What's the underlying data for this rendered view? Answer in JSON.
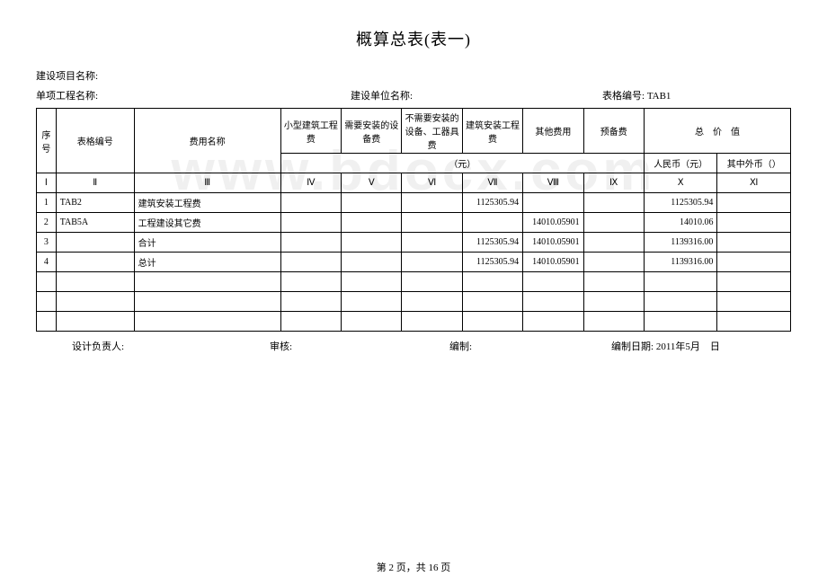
{
  "title": "概算总表(表一)",
  "meta": {
    "projectLabel": "建设项目名称:",
    "unitProjectLabel": "单项工程名称:",
    "constructorLabel": "建设单位名称:",
    "tableCodeLabel": "表格编号:",
    "tableCode": "TAB1"
  },
  "headers": {
    "seq": "序号",
    "code": "表格编号",
    "name": "费用名称",
    "smallBuild": "小型建筑工程费",
    "needInstall": "需要安装的设备费",
    "noInstall": "不需要安装的设备、工器具费",
    "buildInstall": "建筑安装工程费",
    "other": "其他费用",
    "reserve": "预备费",
    "total": "总　价　值",
    "unit": "（元）",
    "rmb": "人民币（元）",
    "foreign": "其中外币（）"
  },
  "romans": [
    "Ⅰ",
    "Ⅱ",
    "Ⅲ",
    "Ⅳ",
    "Ⅴ",
    "Ⅵ",
    "Ⅶ",
    "Ⅷ",
    "Ⅸ",
    "Ⅹ",
    "Ⅺ"
  ],
  "rows": [
    {
      "seq": "1",
      "code": "TAB2",
      "name": "建筑安装工程费",
      "c4": "",
      "c5": "",
      "c6": "",
      "c7": "1125305.94",
      "c8": "",
      "c9": "",
      "c10": "1125305.94",
      "c11": ""
    },
    {
      "seq": "2",
      "code": "TAB5A",
      "name": "工程建设其它费",
      "c4": "",
      "c5": "",
      "c6": "",
      "c7": "",
      "c8": "14010.05901",
      "c9": "",
      "c10": "14010.06",
      "c11": ""
    },
    {
      "seq": "3",
      "code": "",
      "name": "合计",
      "c4": "",
      "c5": "",
      "c6": "",
      "c7": "1125305.94",
      "c8": "14010.05901",
      "c9": "",
      "c10": "1139316.00",
      "c11": ""
    },
    {
      "seq": "4",
      "code": "",
      "name": "总计",
      "c4": "",
      "c5": "",
      "c6": "",
      "c7": "1125305.94",
      "c8": "14010.05901",
      "c9": "",
      "c10": "1139316.00",
      "c11": ""
    },
    {
      "seq": "",
      "code": "",
      "name": "",
      "c4": "",
      "c5": "",
      "c6": "",
      "c7": "",
      "c8": "",
      "c9": "",
      "c10": "",
      "c11": ""
    },
    {
      "seq": "",
      "code": "",
      "name": "",
      "c4": "",
      "c5": "",
      "c6": "",
      "c7": "",
      "c8": "",
      "c9": "",
      "c10": "",
      "c11": ""
    },
    {
      "seq": "",
      "code": "",
      "name": "",
      "c4": "",
      "c5": "",
      "c6": "",
      "c7": "",
      "c8": "",
      "c9": "",
      "c10": "",
      "c11": ""
    }
  ],
  "footer": {
    "designer": "设计负责人:",
    "review": "审核:",
    "compiler": "编制:",
    "dateLabel": "编制日期:",
    "dateValue": "2011年5月　日"
  },
  "watermark": "www.bdocx.com",
  "pager": "第 2 页，共 16 页"
}
